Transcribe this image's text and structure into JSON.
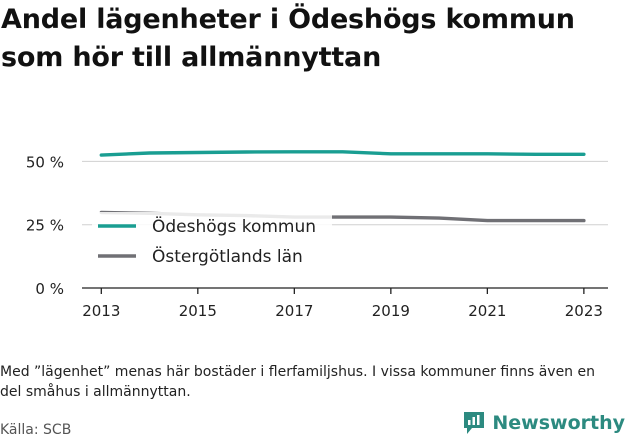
{
  "title": "Andel lägenheter i Ödeshögs kommun som hör till allmännyttan",
  "note": "Med ”lägenhet” menas här bostäder i flerfamiljshus. I vissa kommuner finns även en del småhus i allmännyttan.",
  "source": "Källa: SCB",
  "brand": "Newsworthy",
  "colors": {
    "series1": "#1a9e92",
    "series2": "#707075",
    "grid": "#d0d0d0",
    "axis": "#222222",
    "brand": "#2c8a80"
  },
  "chart_data": {
    "type": "line",
    "x": [
      2013,
      2014,
      2015,
      2016,
      2017,
      2018,
      2019,
      2020,
      2021,
      2022,
      2023
    ],
    "series": [
      {
        "name": "Ödeshögs kommun",
        "values": [
          52.5,
          53.3,
          53.5,
          53.7,
          53.8,
          53.8,
          53.0,
          53.0,
          53.0,
          52.8,
          52.8
        ]
      },
      {
        "name": "Östergötlands län",
        "values": [
          29.8,
          29.5,
          28.9,
          28.6,
          28.0,
          28.0,
          28.0,
          27.6,
          26.6,
          26.6,
          26.6
        ]
      }
    ],
    "xticks": [
      "2013",
      "2015",
      "2017",
      "2019",
      "2021",
      "2023"
    ],
    "xtick_values": [
      2013,
      2015,
      2017,
      2019,
      2021,
      2023
    ],
    "yticks": [
      "0 %",
      "25 %",
      "50 %"
    ],
    "ytick_values": [
      0,
      25,
      50
    ],
    "ylim": [
      0,
      62
    ],
    "xlim": [
      2012.6,
      2023.5
    ],
    "grid": true,
    "legend": "inside-left"
  }
}
